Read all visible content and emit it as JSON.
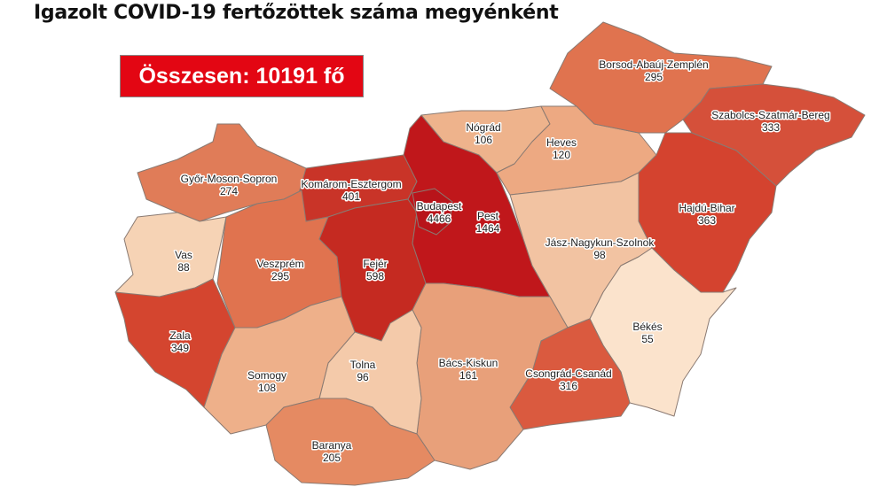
{
  "title": "Igazolt COVID-19 fertőzöttek száma megyénként",
  "total_label": "Összesen: 10191 fő",
  "total_box_color": "#e30613",
  "counties": {
    "gyor": {
      "name": "Győr-Moson-Sopron",
      "value": "274",
      "color": "#e07c58"
    },
    "komarom": {
      "name": "Komárom-Esztergom",
      "value": "401",
      "color": "#c93428"
    },
    "vas": {
      "name": "Vas",
      "value": "88",
      "color": "#f6d3b5"
    },
    "veszprem": {
      "name": "Veszprém",
      "value": "295",
      "color": "#e0734f"
    },
    "zala": {
      "name": "Zala",
      "value": "349",
      "color": "#d4452f"
    },
    "fejer": {
      "name": "Fejér",
      "value": "598",
      "color": "#c52a21"
    },
    "pest": {
      "name": "Pest",
      "value": "1464",
      "color": "#c0171b"
    },
    "budapest": {
      "name": "Budapest",
      "value": "4466",
      "color": "#b8141a"
    },
    "nograd": {
      "name": "Nógrád",
      "value": "106",
      "color": "#eeb38c"
    },
    "heves": {
      "name": "Heves",
      "value": "120",
      "color": "#eda982"
    },
    "borsod": {
      "name": "Borsod-Abaúj-Zemplén",
      "value": "295",
      "color": "#e0734f"
    },
    "szabolcs": {
      "name": "Szabolcs-Szatmár-Bereg",
      "value": "333",
      "color": "#d5503a"
    },
    "hajdu": {
      "name": "Hajdú-Bihar",
      "value": "363",
      "color": "#d4432f"
    },
    "jasz": {
      "name": "Jász-Nagykun-Szolnok",
      "value": "98",
      "color": "#f2c3a2"
    },
    "bekes": {
      "name": "Békés",
      "value": "55",
      "color": "#fbe3cc"
    },
    "csongrad": {
      "name": "Csongrád-Csanád",
      "value": "316",
      "color": "#da5a3f"
    },
    "bacs": {
      "name": "Bács-Kiskun",
      "value": "161",
      "color": "#e8a07a"
    },
    "tolna": {
      "name": "Tolna",
      "value": "96",
      "color": "#f4caaa"
    },
    "somogy": {
      "name": "Somogy",
      "value": "108",
      "color": "#eeb08a"
    },
    "baranya": {
      "name": "Baranya",
      "value": "205",
      "color": "#e58a62"
    }
  }
}
